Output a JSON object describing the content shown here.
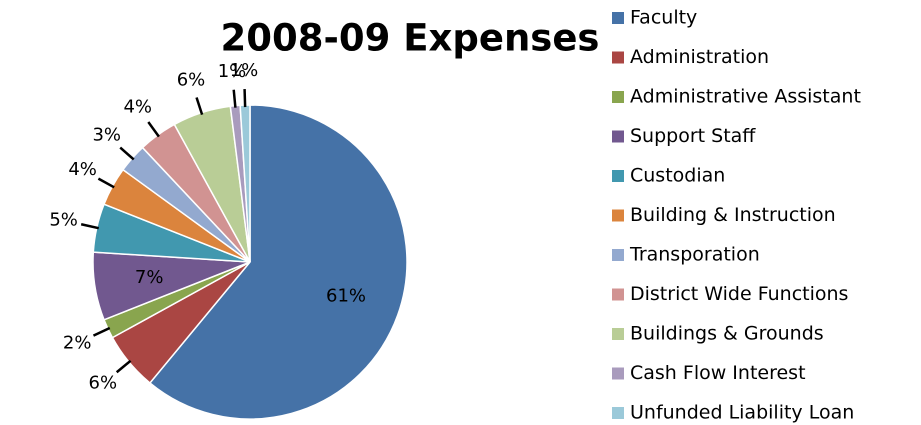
{
  "chart_data": {
    "type": "pie",
    "title": "2008-09 Expenses",
    "categories": [
      "Faculty",
      "Administration",
      "Administrative Assistant",
      "Support Staff",
      "Custodian",
      "Building & Instruction",
      "Transporation",
      "District Wide Functions",
      "Buildings & Grounds",
      "Cash Flow Interest",
      "Unfunded Liability Loan"
    ],
    "values": [
      61,
      6,
      2,
      7,
      5,
      4,
      3,
      4,
      6,
      1,
      1
    ],
    "value_labels": [
      "61%",
      "6%",
      "2%",
      "7%",
      "5%",
      "4%",
      "3%",
      "4%",
      "6%",
      "1%",
      "1%"
    ],
    "colors": [
      "#4572a7",
      "#aa4643",
      "#89a54e",
      "#71588f",
      "#4198af",
      "#db843d",
      "#93a9cf",
      "#d19392",
      "#b9cd96",
      "#a99bbd",
      "#9bc9d9"
    ],
    "legend": "right"
  }
}
